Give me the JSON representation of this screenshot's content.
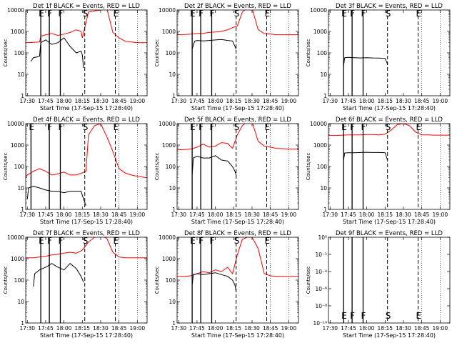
{
  "figure": {
    "x_axis_label": "Start Time (17-Sep-15 17:28:40)",
    "y_axis_label": "Counts/sec",
    "x_tick_labels": [
      "17:30",
      "17:45",
      "18:00",
      "18:15",
      "18:30",
      "18:45",
      "19:00"
    ],
    "colors": {
      "events": "#000000",
      "lld": "#ff0000",
      "axes": "#000000",
      "background": "#ffffff"
    }
  },
  "chart_data": [
    {
      "type": "line",
      "title": "Det 1f BLACK = Events, RED = LLD",
      "xlim": [
        "17:28:40",
        "19:08:00"
      ],
      "ylim": [
        1,
        10000
      ],
      "yscale": "log",
      "y_tick_labels": [
        "1",
        "10",
        "100",
        "1000",
        "10000"
      ],
      "markers": [
        {
          "time": "17:41",
          "label": "E",
          "style": "solid"
        },
        {
          "time": "17:48",
          "label": "F",
          "style": "solid"
        },
        {
          "time": "17:57",
          "label": "F",
          "style": "solid"
        },
        {
          "time": "18:17",
          "label": "S",
          "style": "dashed"
        },
        {
          "time": "18:42",
          "label": "E",
          "style": "dashed"
        }
      ],
      "series": [
        {
          "color": "#ff0000",
          "x": [
            "17:28:40",
            "17:30",
            "17:35",
            "17:40",
            "17:41",
            "17:45",
            "17:50",
            "17:55",
            "18:00",
            "18:05",
            "18:10",
            "18:14",
            "18:15",
            "18:20",
            "18:25",
            "18:30",
            "18:35",
            "18:40",
            "18:45",
            "18:50",
            "18:55",
            "19:00",
            "19:05",
            "19:08"
          ],
          "y": [
            300,
            300,
            310,
            320,
            600,
            700,
            800,
            650,
            750,
            900,
            1200,
            1000,
            500,
            8000,
            9000,
            10000,
            12000,
            900,
            500,
            350,
            320,
            300,
            300,
            300
          ]
        },
        {
          "color": "#000000",
          "x": [
            "17:33",
            "17:35",
            "17:38",
            "17:40",
            "17:41",
            "17:45",
            "17:50",
            "17:55",
            "18:00",
            "18:05",
            "18:10",
            "18:14",
            "18:15",
            "18:16"
          ],
          "y": [
            40,
            60,
            65,
            70,
            300,
            400,
            250,
            300,
            500,
            200,
            100,
            120,
            80,
            20
          ]
        }
      ]
    },
    {
      "type": "line",
      "title": "Det 2f BLACK = Events, RED = LLD",
      "xlim": [
        "17:28:40",
        "19:08:00"
      ],
      "ylim": [
        1,
        10000
      ],
      "yscale": "log",
      "y_tick_labels": [
        "1",
        "10",
        "100",
        "1000",
        "10000"
      ],
      "markers": [
        {
          "time": "17:41",
          "label": "E",
          "style": "solid"
        },
        {
          "time": "17:48",
          "label": "F",
          "style": "solid"
        },
        {
          "time": "17:57",
          "label": "F",
          "style": "solid"
        },
        {
          "time": "18:17",
          "label": "S",
          "style": "dashed"
        },
        {
          "time": "18:42",
          "label": "E",
          "style": "dashed"
        }
      ],
      "series": [
        {
          "color": "#ff0000",
          "x": [
            "17:28:40",
            "17:35",
            "17:40",
            "17:45",
            "17:50",
            "17:55",
            "18:00",
            "18:05",
            "18:10",
            "18:14",
            "18:18",
            "18:22",
            "18:26",
            "18:30",
            "18:35",
            "18:40",
            "18:45",
            "18:50",
            "18:55",
            "19:00",
            "19:08"
          ],
          "y": [
            700,
            720,
            750,
            800,
            820,
            900,
            950,
            1000,
            1200,
            1500,
            1800,
            8000,
            12000,
            12000,
            1200,
            800,
            750,
            700,
            700,
            700,
            700
          ]
        },
        {
          "color": "#000000",
          "x": [
            "17:41",
            "17:43",
            "17:45",
            "17:50",
            "17:55",
            "18:00",
            "18:05",
            "18:10",
            "18:14",
            "18:17"
          ],
          "y": [
            150,
            350,
            380,
            360,
            380,
            400,
            420,
            380,
            360,
            150
          ]
        }
      ]
    },
    {
      "type": "line",
      "title": "Det 3f BLACK = Events, RED = LLD",
      "xlim": [
        "17:28:40",
        "19:08:00"
      ],
      "ylim": [
        1,
        10000
      ],
      "yscale": "log",
      "y_tick_labels": [
        "1",
        "10",
        "100",
        "1000",
        "10000"
      ],
      "markers": [
        {
          "time": "17:41",
          "label": "E",
          "style": "solid"
        },
        {
          "time": "17:48",
          "label": "F",
          "style": "solid"
        },
        {
          "time": "17:57",
          "label": "F",
          "style": "solid"
        },
        {
          "time": "18:17",
          "label": "S",
          "style": "dashed"
        },
        {
          "time": "18:42",
          "label": "E",
          "style": "dashed"
        }
      ],
      "series": [
        {
          "color": "#000000",
          "x": [
            "17:41",
            "17:42",
            "17:45",
            "17:50",
            "17:55",
            "18:00",
            "18:05",
            "18:10",
            "18:15",
            "18:17"
          ],
          "y": [
            25,
            60,
            62,
            60,
            58,
            60,
            58,
            57,
            55,
            30
          ]
        }
      ]
    },
    {
      "type": "line",
      "title": "Det 4f BLACK = Events, RED = LLD",
      "xlim": [
        "17:28:40",
        "19:08:00"
      ],
      "ylim": [
        1,
        10000
      ],
      "yscale": "log",
      "y_tick_labels": [
        "1",
        "10",
        "100",
        "1000",
        "10000"
      ],
      "markers": [
        {
          "time": "17:33",
          "label": "E",
          "style": "solid"
        },
        {
          "time": "17:48",
          "label": "F",
          "style": "solid"
        },
        {
          "time": "17:57",
          "label": "F",
          "style": "solid"
        },
        {
          "time": "18:17",
          "label": "S",
          "style": "dashed"
        },
        {
          "time": "18:42",
          "label": "E",
          "style": "dashed"
        }
      ],
      "series": [
        {
          "color": "#ff0000",
          "x": [
            "17:28:40",
            "17:30",
            "17:35",
            "17:40",
            "17:45",
            "17:50",
            "17:55",
            "18:00",
            "18:05",
            "18:10",
            "18:15",
            "18:18",
            "18:20",
            "18:25",
            "18:30",
            "18:35",
            "18:40",
            "18:45",
            "18:50",
            "18:55",
            "19:00",
            "19:08"
          ],
          "y": [
            30,
            40,
            60,
            80,
            60,
            40,
            45,
            55,
            40,
            40,
            50,
            60,
            3000,
            8000,
            10000,
            2500,
            500,
            80,
            50,
            40,
            35,
            30
          ]
        },
        {
          "color": "#000000",
          "x": [
            "17:30",
            "17:31",
            "17:35",
            "17:40",
            "17:45",
            "17:50",
            "17:55",
            "18:00",
            "18:05",
            "18:10",
            "18:14",
            "18:16",
            "18:18"
          ],
          "y": [
            3,
            10,
            12,
            10,
            8,
            7,
            7,
            6,
            7,
            7,
            7,
            3,
            1.5
          ]
        }
      ]
    },
    {
      "type": "line",
      "title": "Det 5f BLACK = Events, RED = LLD",
      "xlim": [
        "17:28:40",
        "19:08:00"
      ],
      "ylim": [
        1,
        10000
      ],
      "yscale": "log",
      "y_tick_labels": [
        "1",
        "10",
        "100",
        "1000",
        "10000"
      ],
      "markers": [
        {
          "time": "17:41",
          "label": "E",
          "style": "solid"
        },
        {
          "time": "17:48",
          "label": "F",
          "style": "solid"
        },
        {
          "time": "17:57",
          "label": "F",
          "style": "solid"
        },
        {
          "time": "18:17",
          "label": "S",
          "style": "dashed"
        },
        {
          "time": "18:42",
          "label": "E",
          "style": "dashed"
        }
      ],
      "series": [
        {
          "color": "#ff0000",
          "x": [
            "17:28:40",
            "17:35",
            "17:40",
            "17:45",
            "17:50",
            "17:55",
            "18:00",
            "18:05",
            "18:10",
            "18:14",
            "18:18",
            "18:22",
            "18:26",
            "18:30",
            "18:35",
            "18:40",
            "18:45",
            "18:50",
            "19:00",
            "19:08"
          ],
          "y": [
            600,
            620,
            650,
            800,
            1100,
            800,
            900,
            1300,
            1200,
            700,
            3000,
            8000,
            12000,
            12000,
            1500,
            900,
            800,
            700,
            650,
            650
          ]
        },
        {
          "color": "#000000",
          "x": [
            "17:41",
            "17:42",
            "17:45",
            "17:50",
            "17:55",
            "18:00",
            "18:05",
            "18:10",
            "18:14",
            "18:16",
            "18:17"
          ],
          "y": [
            40,
            250,
            300,
            250,
            250,
            320,
            200,
            180,
            100,
            60,
            40
          ]
        }
      ]
    },
    {
      "type": "line",
      "title": "Det 6f BLACK = Events, RED = LLD",
      "xlim": [
        "17:28:40",
        "19:08:00"
      ],
      "ylim": [
        1,
        10000
      ],
      "yscale": "log",
      "y_tick_labels": [
        "1",
        "10",
        "100",
        "1000",
        "10000"
      ],
      "markers": [
        {
          "time": "17:41",
          "label": "E",
          "style": "solid"
        },
        {
          "time": "17:48",
          "label": "F",
          "style": "solid"
        },
        {
          "time": "17:57",
          "label": "F",
          "style": "solid"
        },
        {
          "time": "18:17",
          "label": "S",
          "style": "dashed"
        },
        {
          "time": "18:42",
          "label": "E",
          "style": "dashed"
        }
      ],
      "series": [
        {
          "color": "#ff0000",
          "x": [
            "17:28:40",
            "17:35",
            "17:40",
            "17:45",
            "17:50",
            "17:55",
            "18:00",
            "18:05",
            "18:10",
            "18:15",
            "18:20",
            "18:25",
            "18:30",
            "18:35",
            "18:40",
            "18:45",
            "18:50",
            "18:55",
            "19:00",
            "19:08"
          ],
          "y": [
            2800,
            2800,
            2900,
            3000,
            3000,
            3000,
            3100,
            3100,
            3000,
            3200,
            5000,
            9000,
            10000,
            8000,
            4000,
            3000,
            3000,
            2900,
            2900,
            2900
          ]
        },
        {
          "color": "#000000",
          "x": [
            "17:41",
            "17:42",
            "17:45",
            "17:50",
            "17:55",
            "18:00",
            "18:05",
            "18:10",
            "18:15",
            "18:17"
          ],
          "y": [
            200,
            430,
            440,
            440,
            450,
            460,
            450,
            450,
            440,
            200
          ]
        }
      ]
    },
    {
      "type": "line",
      "title": "Det 7f BLACK = Events, RED = LLD",
      "xlim": [
        "17:28:40",
        "19:08:00"
      ],
      "ylim": [
        1,
        10000
      ],
      "yscale": "log",
      "y_tick_labels": [
        "1",
        "10",
        "100",
        "1000",
        "10000"
      ],
      "markers": [
        {
          "time": "17:41",
          "label": "E",
          "style": "solid"
        },
        {
          "time": "17:48",
          "label": "F",
          "style": "solid"
        },
        {
          "time": "17:57",
          "label": "F",
          "style": "solid"
        },
        {
          "time": "18:17",
          "label": "S",
          "style": "dashed"
        },
        {
          "time": "18:42",
          "label": "E",
          "style": "dashed"
        }
      ],
      "series": [
        {
          "color": "#ff0000",
          "x": [
            "17:28:40",
            "17:35",
            "17:40",
            "17:45",
            "17:50",
            "17:55",
            "18:00",
            "18:05",
            "18:10",
            "18:15",
            "18:20",
            "18:25",
            "18:30",
            "18:35",
            "18:40",
            "18:45",
            "18:50",
            "18:55",
            "19:00",
            "19:08"
          ],
          "y": [
            1100,
            1100,
            1200,
            1300,
            1500,
            1600,
            1800,
            2000,
            1800,
            2500,
            6000,
            10000,
            12000,
            9000,
            2000,
            1200,
            1100,
            1100,
            1100,
            1100
          ]
        },
        {
          "color": "#000000",
          "x": [
            "17:35",
            "17:36",
            "17:40",
            "17:45",
            "17:50",
            "17:55",
            "18:00",
            "18:05",
            "18:10",
            "18:14",
            "18:16"
          ],
          "y": [
            50,
            200,
            300,
            400,
            600,
            400,
            300,
            600,
            350,
            150,
            80
          ]
        }
      ]
    },
    {
      "type": "line",
      "title": "Det 8f BLACK = Events, RED = LLD",
      "xlim": [
        "17:28:40",
        "19:08:00"
      ],
      "ylim": [
        1,
        10000
      ],
      "yscale": "log",
      "y_tick_labels": [
        "1",
        "10",
        "100",
        "1000",
        "10000"
      ],
      "markers": [
        {
          "time": "17:41",
          "label": "E",
          "style": "solid"
        },
        {
          "time": "17:48",
          "label": "F",
          "style": "solid"
        },
        {
          "time": "17:57",
          "label": "F",
          "style": "solid"
        },
        {
          "time": "18:17",
          "label": "S",
          "style": "dashed"
        },
        {
          "time": "18:42",
          "label": "E",
          "style": "dashed"
        }
      ],
      "series": [
        {
          "color": "#ff0000",
          "x": [
            "17:28:40",
            "17:35",
            "17:40",
            "17:45",
            "17:50",
            "17:55",
            "18:00",
            "18:05",
            "18:10",
            "18:14",
            "18:18",
            "18:22",
            "18:26",
            "18:30",
            "18:35",
            "18:40",
            "18:45",
            "18:50",
            "19:00",
            "19:08"
          ],
          "y": [
            150,
            150,
            160,
            200,
            250,
            220,
            300,
            250,
            400,
            200,
            1500,
            8000,
            10000,
            10000,
            3000,
            200,
            160,
            150,
            150,
            150
          ]
        },
        {
          "color": "#000000",
          "x": [
            "17:41",
            "17:42",
            "17:45",
            "17:50",
            "17:55",
            "18:00",
            "18:05",
            "18:10",
            "18:14",
            "18:16",
            "18:17"
          ],
          "y": [
            60,
            180,
            200,
            180,
            200,
            220,
            180,
            150,
            100,
            60,
            30
          ]
        }
      ]
    },
    {
      "type": "line",
      "title": "Det 9f BLACK = Events, RED = LLD",
      "xlim": [
        "17:28:40",
        "19:08:00"
      ],
      "ylim": [
        1e-10,
        1.0
      ],
      "yscale": "log",
      "y_tick_labels": [
        "10⁻¹⁰",
        "10⁻⁸",
        "10⁻⁶",
        "10⁻⁴",
        "10⁻²",
        "10⁰"
      ],
      "markers": [
        {
          "time": "17:41",
          "label": "E",
          "style": "solid"
        },
        {
          "time": "17:48",
          "label": "F",
          "style": "solid"
        },
        {
          "time": "17:57",
          "label": "F",
          "style": "solid"
        },
        {
          "time": "18:17",
          "label": "S",
          "style": "dashed"
        },
        {
          "time": "18:42",
          "label": "E",
          "style": "dashed"
        }
      ],
      "series": []
    }
  ]
}
